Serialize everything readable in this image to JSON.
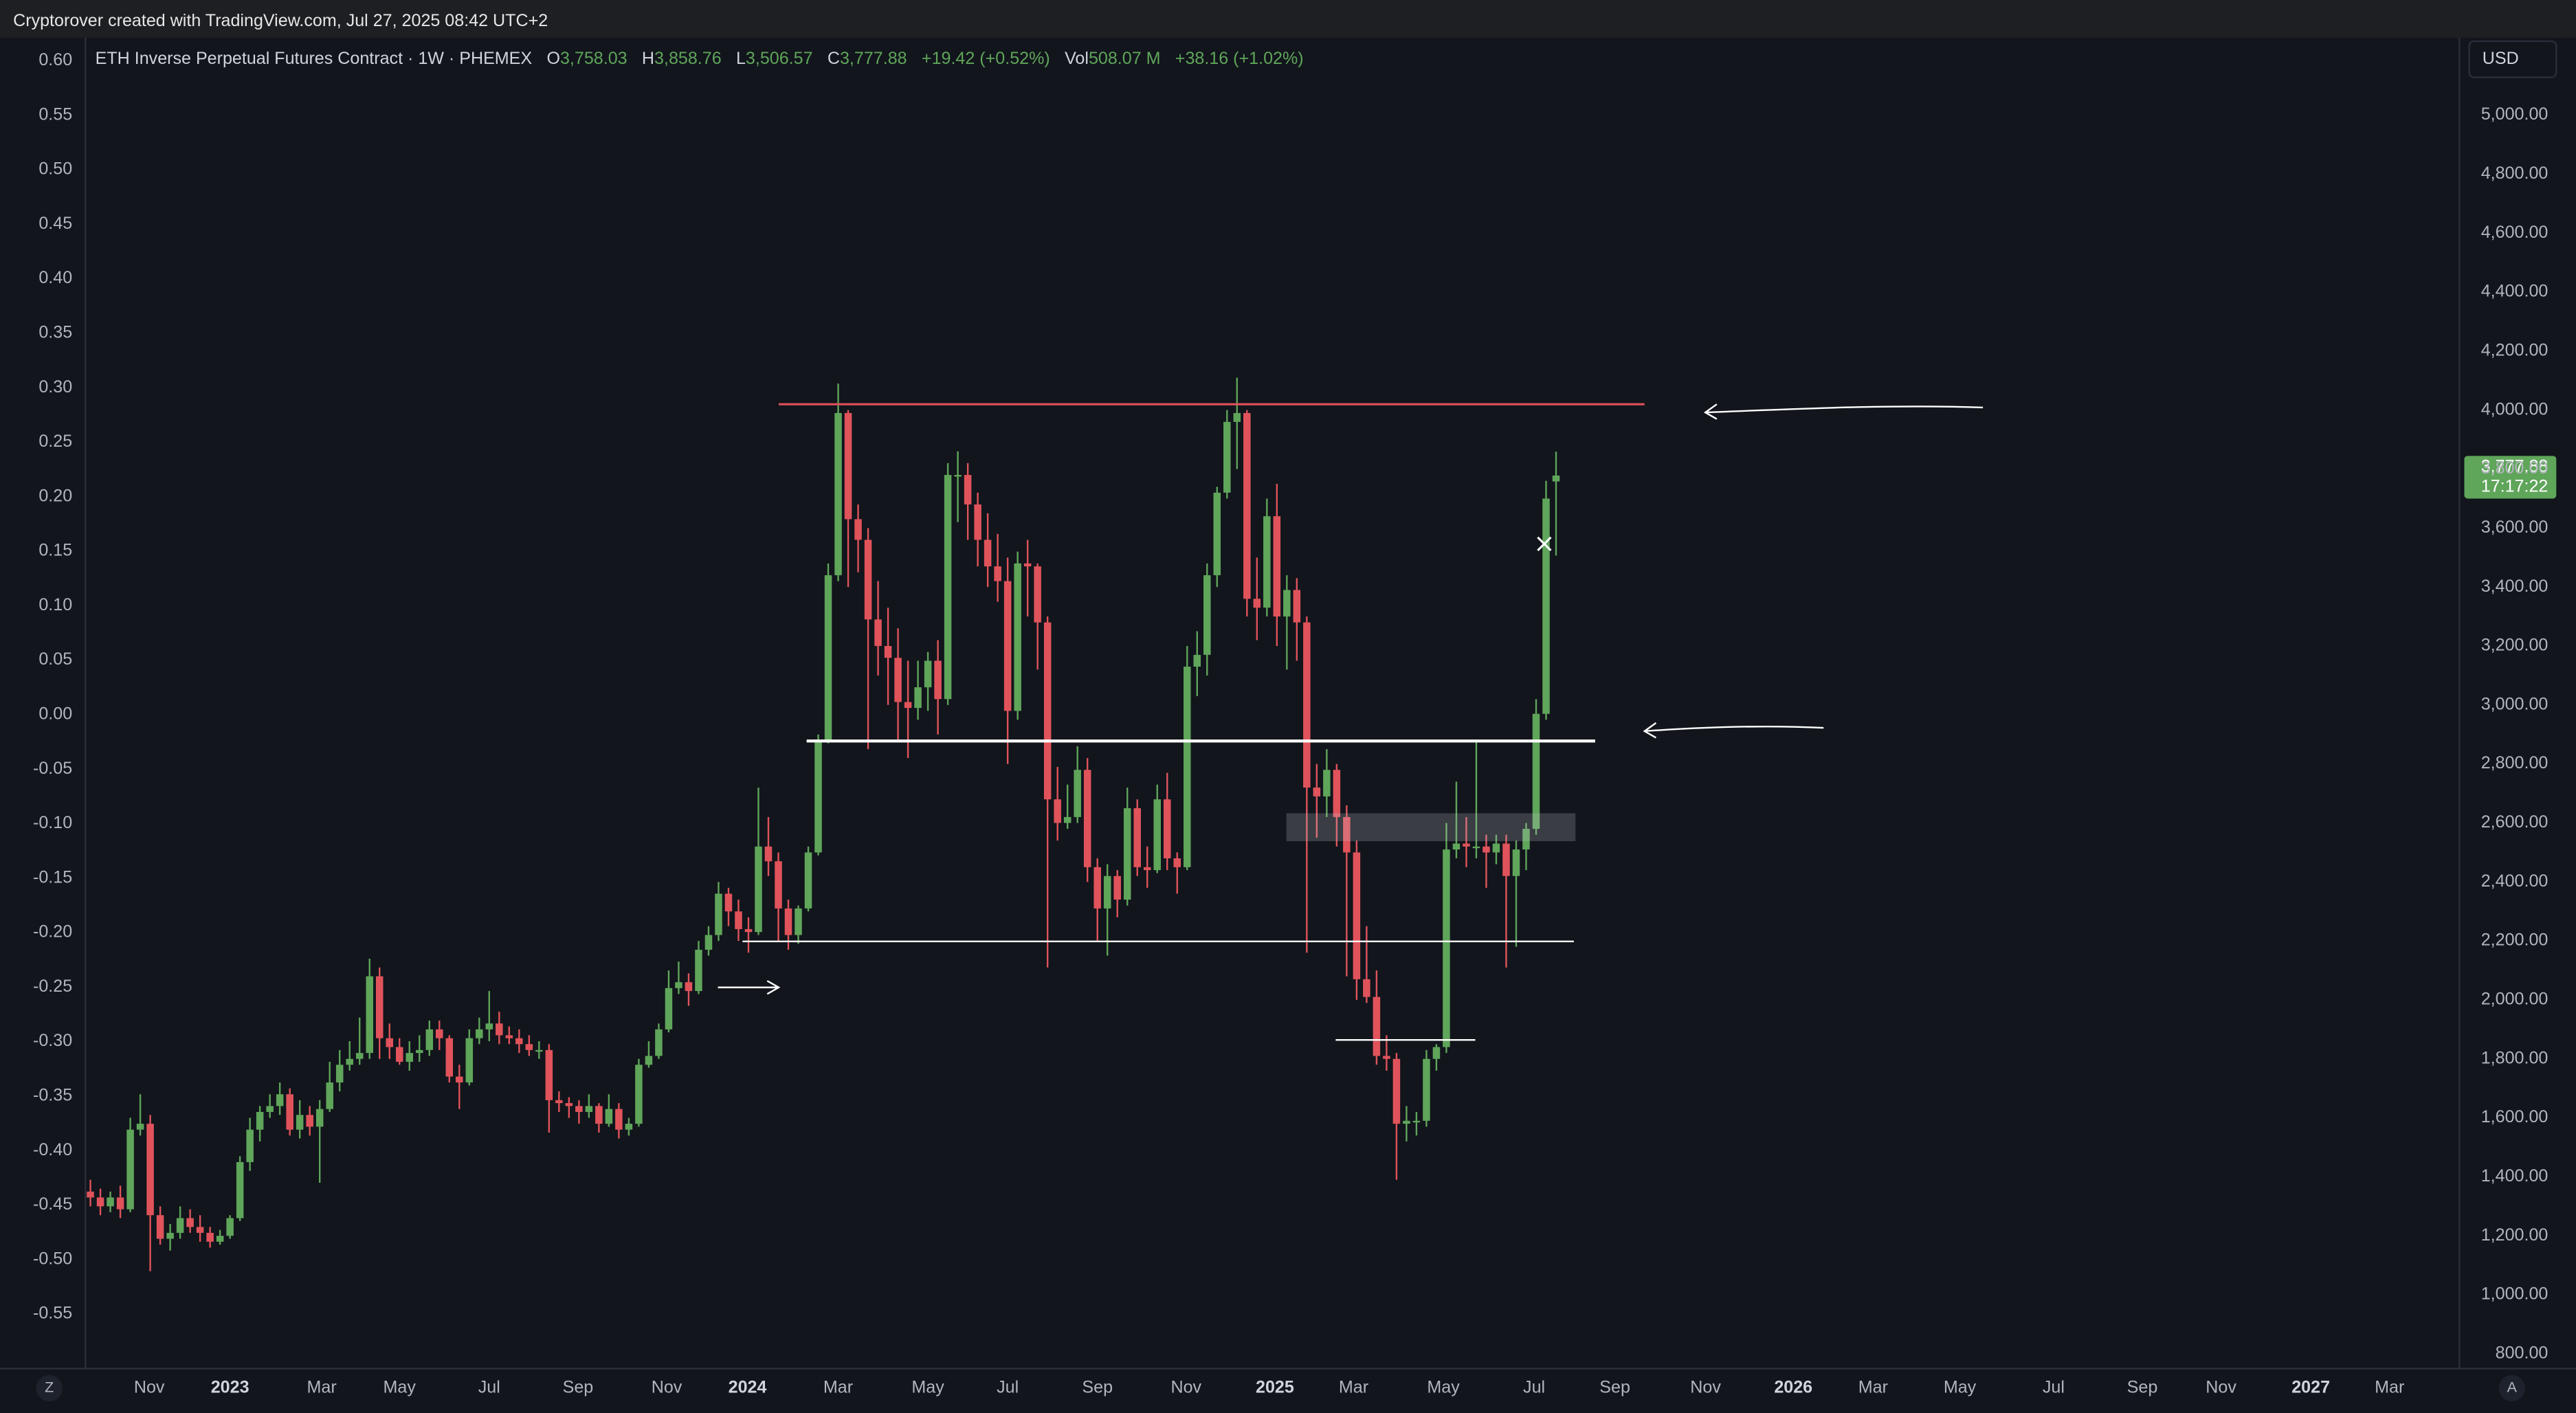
{
  "header": {
    "title": "Cryptorover created with TradingView.com, Jul 27, 2025 08:42 UTC+2"
  },
  "legend": [
    {
      "key": "O",
      "value": "3,758.03"
    },
    {
      "key": "H",
      "value": "3,858.76"
    },
    {
      "key": "L",
      "value": "3,506.57"
    },
    {
      "key": "C",
      "value": "3,777.88"
    },
    {
      "value": "+19.42 (+0.52%)"
    },
    {
      "key": "Vol",
      "value": "508.07 M"
    },
    {
      "value": "+38.16 (+1.02%)"
    }
  ],
  "currency": "USD",
  "price_label": {
    "price": "3,777.88",
    "countdown": "17:17:22"
  },
  "corner_buttons": {
    "left": "Z",
    "right": "A"
  },
  "chart_data": {
    "type": "candlestick",
    "ylim": [
      -0.6,
      0.621
    ],
    "yticks": [
      {
        "value": 0.6,
        "label": "0.60"
      },
      0.55,
      {
        "value": 0.5,
        "label": "0.50"
      },
      0.45,
      {
        "value": 0.4,
        "label": "0.40"
      },
      0.35,
      {
        "value": 0.3,
        "label": "0.30"
      },
      0.25,
      {
        "value": 0.2,
        "label": "0.20"
      },
      0.15,
      {
        "value": 0.1,
        "label": "0.10"
      },
      0.05,
      {
        "value": 0,
        "label": "0.00"
      },
      -0.05,
      {
        "value": -0.1,
        "label": "-0.10"
      },
      -0.15,
      {
        "value": -0.2,
        "label": "-0.20"
      },
      -0.25,
      {
        "value": -0.3,
        "label": "-0.30"
      },
      -0.35,
      {
        "value": -0.4,
        "label": "-0.40"
      },
      -0.45,
      {
        "value": -0.5,
        "label": "-0.50"
      },
      -0.55
    ],
    "y2lim": [
      750,
      5262
    ],
    "y2ticks": [
      {
        "value": 5000,
        "label": "5,000.00"
      },
      {
        "value": 4800,
        "label": "4,800.00"
      },
      {
        "value": 4600,
        "label": "4,600.00"
      },
      {
        "value": 4400,
        "label": "4,400.00"
      },
      {
        "value": 4200,
        "label": "4,200.00"
      },
      {
        "value": 4000,
        "label": "4,000.00"
      },
      {
        "value": 3800,
        "label": "3,800.00"
      },
      {
        "value": 3600,
        "label": "3,600.00"
      },
      {
        "value": 3400,
        "label": "3,400.00"
      },
      {
        "value": 3200,
        "label": "3,200.00"
      },
      {
        "value": 3000,
        "label": "3,000.00"
      },
      {
        "value": 2800,
        "label": "2,800.00"
      },
      {
        "value": 2600,
        "label": "2,600.00"
      },
      {
        "value": 2400,
        "label": "2,400.00"
      },
      {
        "value": 2200,
        "label": "2,200.00"
      },
      {
        "value": 2000,
        "label": "2,000.00"
      },
      {
        "value": 1800,
        "label": "1,800.00"
      },
      {
        "value": 1600,
        "label": "1,600.00"
      },
      {
        "value": 1400,
        "label": "1,400.00"
      },
      {
        "value": 1200,
        "label": "1,200.00"
      },
      {
        "value": 1000,
        "label": "1,000.00"
      },
      {
        "value": 800,
        "label": "800.00"
      }
    ],
    "xlim": [
      -0.5,
      237.6
    ],
    "xticks": [
      {
        "value": 5.9,
        "label": "Nov"
      },
      {
        "value": 14.0,
        "label": "2023"
      },
      {
        "value": 23.2,
        "label": "Mar"
      },
      {
        "value": 31.0,
        "label": "May"
      },
      {
        "value": 40.0,
        "label": "Jul"
      },
      {
        "value": 48.9,
        "label": "Sep"
      },
      {
        "value": 57.8,
        "label": "Nov"
      },
      {
        "value": 65.9,
        "label": "2024"
      },
      {
        "value": 75.0,
        "label": "Mar"
      },
      {
        "value": 84.0,
        "label": "May"
      },
      {
        "value": 92.0,
        "label": "Jul"
      },
      {
        "value": 101.0,
        "label": "Sep"
      },
      {
        "value": 109.9,
        "label": "Nov"
      },
      {
        "value": 118.8,
        "label": "2025"
      },
      {
        "value": 126.7,
        "label": "Mar"
      },
      {
        "value": 135.7,
        "label": "May"
      },
      {
        "value": 144.8,
        "label": "Jul"
      },
      {
        "value": 152.9,
        "label": "Sep"
      },
      {
        "value": 162.0,
        "label": "Nov"
      },
      {
        "value": 170.8,
        "label": "2026"
      },
      {
        "value": 178.8,
        "label": "Mar"
      },
      {
        "value": 187.5,
        "label": "May"
      },
      {
        "value": 196.9,
        "label": "Jul"
      },
      {
        "value": 205.8,
        "label": "Sep"
      },
      {
        "value": 213.7,
        "label": "Nov"
      },
      {
        "value": 222.7,
        "label": "2027"
      },
      {
        "value": 230.6,
        "label": "Mar"
      }
    ],
    "series": [
      {
        "name": "ETH Inverse Perpetual Futures Contract · 1W · PHEMEX",
        "axis": "y2",
        "up_color": "#5fa55a",
        "down_color": "#e0535b",
        "values": [
          [
            1350,
            1390,
            1300,
            1330
          ],
          [
            1330,
            1360,
            1270,
            1300
          ],
          [
            1300,
            1350,
            1280,
            1330
          ],
          [
            1330,
            1370,
            1260,
            1290
          ],
          [
            1290,
            1600,
            1280,
            1560
          ],
          [
            1560,
            1680,
            1540,
            1580
          ],
          [
            1580,
            1610,
            1080,
            1270
          ],
          [
            1270,
            1300,
            1170,
            1190
          ],
          [
            1190,
            1240,
            1150,
            1210
          ],
          [
            1210,
            1300,
            1190,
            1260
          ],
          [
            1260,
            1290,
            1210,
            1230
          ],
          [
            1230,
            1270,
            1180,
            1210
          ],
          [
            1210,
            1230,
            1160,
            1180
          ],
          [
            1180,
            1220,
            1170,
            1200
          ],
          [
            1200,
            1270,
            1190,
            1260
          ],
          [
            1260,
            1470,
            1250,
            1450
          ],
          [
            1450,
            1600,
            1420,
            1560
          ],
          [
            1560,
            1640,
            1520,
            1620
          ],
          [
            1620,
            1680,
            1600,
            1640
          ],
          [
            1640,
            1720,
            1610,
            1680
          ],
          [
            1680,
            1700,
            1540,
            1560
          ],
          [
            1560,
            1660,
            1530,
            1610
          ],
          [
            1610,
            1640,
            1540,
            1570
          ],
          [
            1570,
            1660,
            1380,
            1630
          ],
          [
            1630,
            1790,
            1620,
            1720
          ],
          [
            1720,
            1830,
            1690,
            1780
          ],
          [
            1780,
            1860,
            1760,
            1800
          ],
          [
            1800,
            1940,
            1780,
            1820
          ],
          [
            1820,
            2140,
            1800,
            2080
          ],
          [
            2080,
            2110,
            1800,
            1870
          ],
          [
            1870,
            1920,
            1800,
            1840
          ],
          [
            1840,
            1870,
            1780,
            1790
          ],
          [
            1790,
            1860,
            1760,
            1820
          ],
          [
            1820,
            1880,
            1790,
            1830
          ],
          [
            1830,
            1930,
            1810,
            1900
          ],
          [
            1900,
            1930,
            1830,
            1870
          ],
          [
            1870,
            1880,
            1720,
            1740
          ],
          [
            1740,
            1780,
            1630,
            1720
          ],
          [
            1720,
            1900,
            1710,
            1870
          ],
          [
            1870,
            1940,
            1850,
            1900
          ],
          [
            1900,
            2030,
            1860,
            1920
          ],
          [
            1920,
            1960,
            1850,
            1880
          ],
          [
            1880,
            1910,
            1850,
            1870
          ],
          [
            1870,
            1900,
            1820,
            1850
          ],
          [
            1850,
            1880,
            1810,
            1830
          ],
          [
            1830,
            1860,
            1800,
            1830
          ],
          [
            1830,
            1850,
            1550,
            1660
          ],
          [
            1660,
            1690,
            1620,
            1650
          ],
          [
            1650,
            1670,
            1600,
            1640
          ],
          [
            1640,
            1660,
            1580,
            1620
          ],
          [
            1620,
            1680,
            1600,
            1640
          ],
          [
            1640,
            1650,
            1550,
            1580
          ],
          [
            1580,
            1680,
            1570,
            1630
          ],
          [
            1630,
            1650,
            1530,
            1560
          ],
          [
            1560,
            1600,
            1540,
            1580
          ],
          [
            1580,
            1800,
            1570,
            1780
          ],
          [
            1780,
            1860,
            1770,
            1810
          ],
          [
            1810,
            1920,
            1800,
            1900
          ],
          [
            1900,
            2100,
            1890,
            2040
          ],
          [
            2040,
            2130,
            2020,
            2060
          ],
          [
            2060,
            2090,
            1980,
            2030
          ],
          [
            2030,
            2200,
            2020,
            2170
          ],
          [
            2170,
            2250,
            2150,
            2220
          ],
          [
            2220,
            2400,
            2200,
            2360
          ],
          [
            2360,
            2380,
            2250,
            2300
          ],
          [
            2300,
            2340,
            2200,
            2240
          ],
          [
            2240,
            2280,
            2160,
            2230
          ],
          [
            2230,
            2720,
            2220,
            2520
          ],
          [
            2520,
            2620,
            2420,
            2470
          ],
          [
            2470,
            2500,
            2200,
            2310
          ],
          [
            2310,
            2340,
            2170,
            2220
          ],
          [
            2220,
            2320,
            2190,
            2310
          ],
          [
            2310,
            2520,
            2300,
            2500
          ],
          [
            2500,
            2900,
            2490,
            2880
          ],
          [
            2880,
            3480,
            2870,
            3440
          ],
          [
            3440,
            4090,
            3420,
            3990
          ],
          [
            3990,
            4000,
            3400,
            3630
          ],
          [
            3630,
            3680,
            3450,
            3560
          ],
          [
            3560,
            3600,
            2850,
            3290
          ],
          [
            3290,
            3420,
            3100,
            3200
          ],
          [
            3200,
            3330,
            3000,
            3160
          ],
          [
            3160,
            3260,
            2880,
            3010
          ],
          [
            3010,
            3150,
            2820,
            2990
          ],
          [
            2990,
            3150,
            2950,
            3060
          ],
          [
            3060,
            3180,
            2980,
            3150
          ],
          [
            3150,
            3220,
            2900,
            3020
          ],
          [
            3020,
            3820,
            3000,
            3780
          ],
          [
            3780,
            3860,
            3620,
            3780
          ],
          [
            3780,
            3820,
            3560,
            3680
          ],
          [
            3680,
            3720,
            3470,
            3560
          ],
          [
            3560,
            3650,
            3400,
            3470
          ],
          [
            3470,
            3580,
            3350,
            3420
          ],
          [
            3420,
            3500,
            2800,
            2980
          ],
          [
            2980,
            3520,
            2950,
            3480
          ],
          [
            3480,
            3560,
            3300,
            3470
          ],
          [
            3470,
            3480,
            3120,
            3280
          ],
          [
            3280,
            3300,
            2110,
            2680
          ],
          [
            2680,
            2790,
            2540,
            2600
          ],
          [
            2600,
            2730,
            2580,
            2620
          ],
          [
            2620,
            2860,
            2600,
            2780
          ],
          [
            2780,
            2820,
            2400,
            2450
          ],
          [
            2450,
            2480,
            2200,
            2310
          ],
          [
            2310,
            2460,
            2150,
            2420
          ],
          [
            2420,
            2440,
            2280,
            2340
          ],
          [
            2340,
            2720,
            2320,
            2650
          ],
          [
            2650,
            2680,
            2420,
            2450
          ],
          [
            2450,
            2520,
            2380,
            2440
          ],
          [
            2440,
            2730,
            2430,
            2680
          ],
          [
            2680,
            2770,
            2440,
            2480
          ],
          [
            2480,
            2500,
            2360,
            2450
          ],
          [
            2450,
            3200,
            2440,
            3130
          ],
          [
            3130,
            3250,
            3030,
            3170
          ],
          [
            3170,
            3480,
            3100,
            3440
          ],
          [
            3440,
            3740,
            3400,
            3720
          ],
          [
            3720,
            4000,
            3700,
            3960
          ],
          [
            3960,
            4110,
            3800,
            3990
          ],
          [
            3990,
            4000,
            3300,
            3360
          ],
          [
            3360,
            3500,
            3220,
            3330
          ],
          [
            3330,
            3700,
            3300,
            3640
          ],
          [
            3640,
            3750,
            3200,
            3300
          ],
          [
            3300,
            3440,
            3120,
            3390
          ],
          [
            3390,
            3430,
            3150,
            3280
          ],
          [
            3280,
            3300,
            2160,
            2720
          ],
          [
            2720,
            2800,
            2550,
            2690
          ],
          [
            2690,
            2850,
            2620,
            2780
          ],
          [
            2780,
            2800,
            2520,
            2620
          ],
          [
            2620,
            2660,
            2080,
            2500
          ],
          [
            2500,
            2540,
            2000,
            2070
          ],
          [
            2070,
            2250,
            1990,
            2010
          ],
          [
            2010,
            2100,
            1780,
            1810
          ],
          [
            1810,
            1880,
            1760,
            1800
          ],
          [
            1800,
            1820,
            1390,
            1580
          ],
          [
            1580,
            1640,
            1520,
            1590
          ],
          [
            1590,
            1620,
            1540,
            1590
          ],
          [
            1590,
            1830,
            1570,
            1800
          ],
          [
            1800,
            1850,
            1760,
            1840
          ],
          [
            1840,
            2600,
            1820,
            2510
          ],
          [
            2510,
            2740,
            2480,
            2530
          ],
          [
            2530,
            2620,
            2450,
            2520
          ],
          [
            2520,
            2880,
            2480,
            2520
          ],
          [
            2520,
            2560,
            2380,
            2500
          ],
          [
            2500,
            2560,
            2460,
            2530
          ],
          [
            2530,
            2560,
            2110,
            2420
          ],
          [
            2420,
            2540,
            2180,
            2510
          ],
          [
            2510,
            2600,
            2440,
            2580
          ],
          [
            2580,
            3020,
            2560,
            2970
          ],
          [
            2970,
            3760,
            2950,
            3700
          ],
          [
            3758.03,
            3858.76,
            3506.57,
            3777.88
          ]
        ]
      }
    ]
  }
}
